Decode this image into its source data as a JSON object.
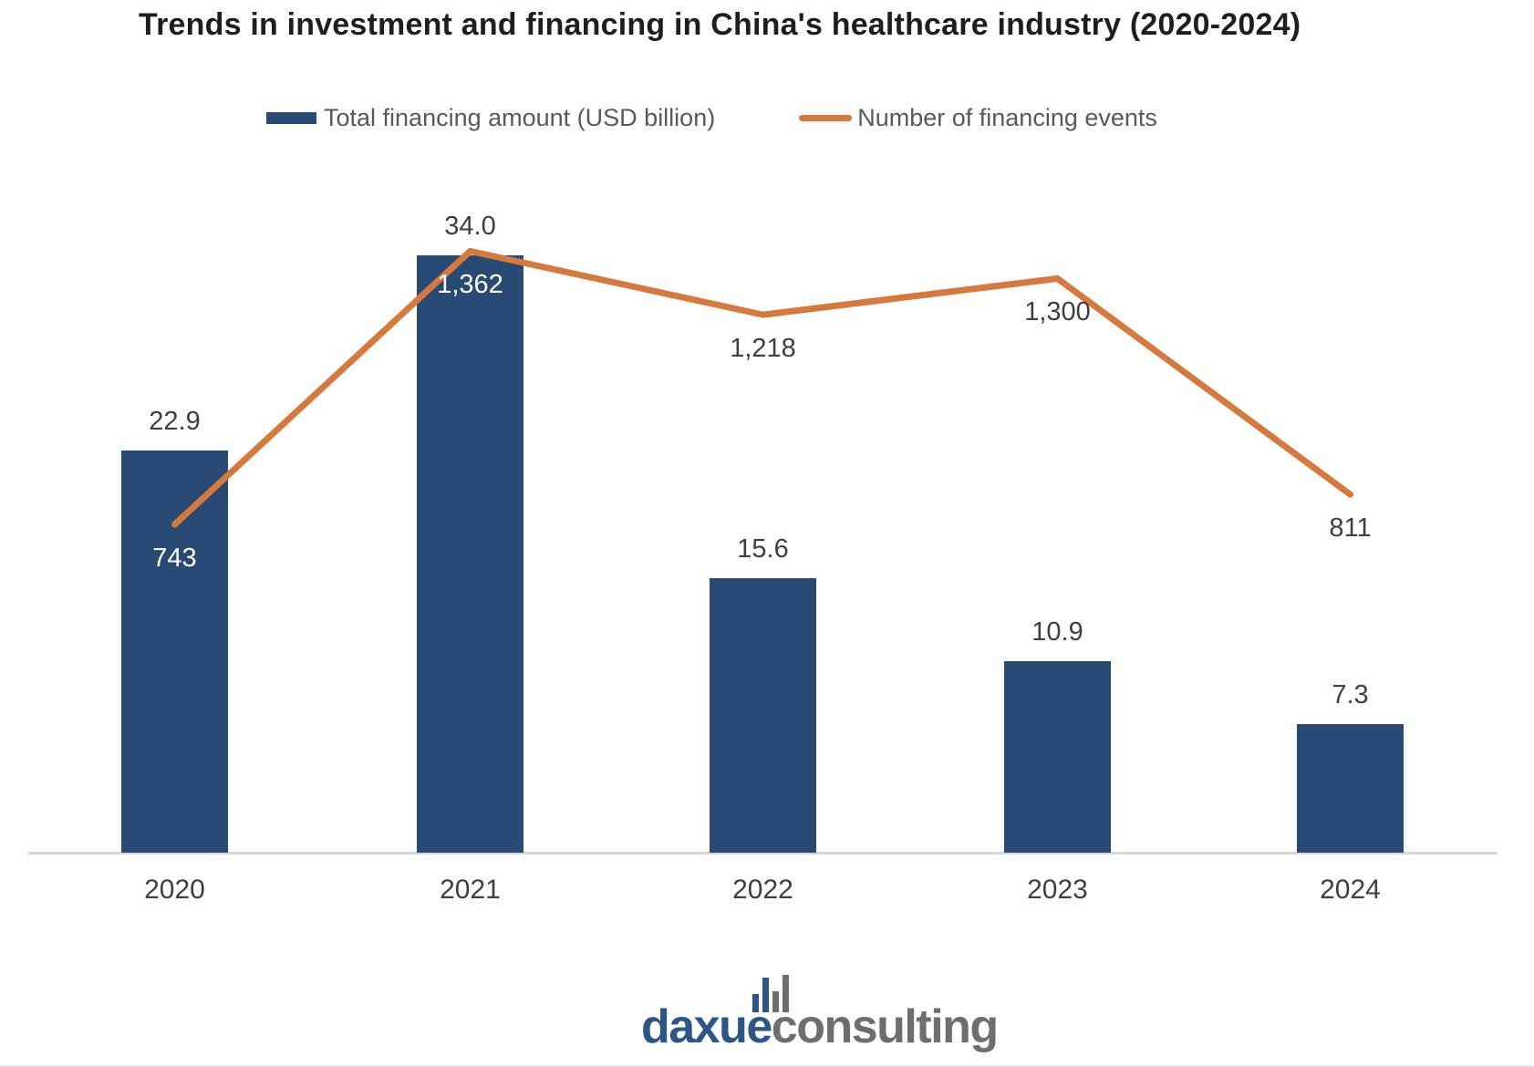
{
  "colors": {
    "bar": "#294A74",
    "line": "#D6793C",
    "title_text": "#1E1E1E",
    "label_text": "#3F3F3F",
    "legend_text": "#595959",
    "axis_line": "#D9D9D9",
    "bar_inside_label": "#FFFFFF",
    "logo_blue": "#2E5587",
    "logo_gray": "#6D6E71"
  },
  "chart_data": {
    "type": "combo",
    "title": "Trends in investment and financing in China's healthcare industry (2020-2024)",
    "categories": [
      "2020",
      "2021",
      "2022",
      "2023",
      "2024"
    ],
    "series": [
      {
        "name": "Total financing amount (USD billion)",
        "type": "bar",
        "color": "#294A74",
        "values": [
          22.9,
          34.0,
          15.6,
          10.9,
          7.3
        ],
        "labels": [
          "22.9",
          "34.0",
          "15.6",
          "10.9",
          "7.3"
        ],
        "label_color": "#3F3F3F"
      },
      {
        "name": "Number of financing events",
        "type": "line",
        "color": "#D6793C",
        "values": [
          743,
          1362,
          1218,
          1300,
          811
        ],
        "labels": [
          "743",
          "1,362",
          "1,218",
          "1,300",
          "811"
        ],
        "label_colors": [
          "#FFFFFF",
          "#FFFFFF",
          "#3F3F3F",
          "#3F3F3F",
          "#3F3F3F"
        ]
      }
    ],
    "bar_axis": {
      "min": 0,
      "max": 34
    },
    "line_axis": {
      "min": 0,
      "max": 1400
    },
    "grid": false,
    "legend_position": "top-center",
    "value_labels": true
  },
  "footer": {
    "logo_daxue": "daxue",
    "logo_consulting": "consulting"
  }
}
